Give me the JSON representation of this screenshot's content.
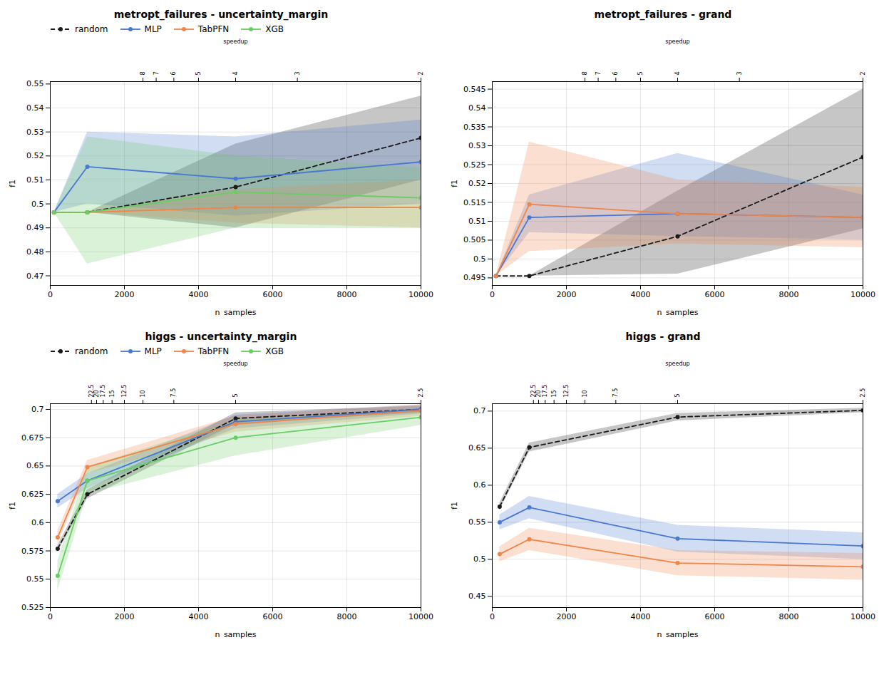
{
  "chart_data": [
    {
      "type": "line",
      "title": "metropt_failures - uncertainty_margin",
      "x_label": "n_samples",
      "y_label": "f1",
      "x2_label": "speedup",
      "x": [
        100,
        1000,
        5000,
        10000
      ],
      "xlim": [
        0,
        10000
      ],
      "xticks": [
        0,
        2000,
        4000,
        6000,
        8000,
        10000
      ],
      "ylim": [
        0.466,
        0.551
      ],
      "yticks": [
        0.47,
        0.48,
        0.49,
        0.5,
        0.51,
        0.52,
        0.53,
        0.54,
        0.55
      ],
      "x2ticks": [
        {
          "value": 2500,
          "label": "8"
        },
        {
          "value": 2857.142857142857,
          "label": "7"
        },
        {
          "value": 3333.3333333333335,
          "label": "6"
        },
        {
          "value": 4000,
          "label": "5"
        },
        {
          "value": 5000,
          "label": "4"
        },
        {
          "value": 6666.666666666667,
          "label": "3"
        },
        {
          "value": 10000,
          "label": "2"
        }
      ],
      "grid": true,
      "legend": "upper left",
      "series": [
        {
          "name": "random",
          "color": "#1a1a1a",
          "line_style": "dashed",
          "marker": "circle",
          "values": [
            0.4965,
            0.4965,
            0.507,
            0.5275
          ],
          "std_low": [
            0.4965,
            0.4965,
            0.49,
            0.51
          ],
          "std_high": [
            0.4965,
            0.4965,
            0.525,
            0.545
          ]
        },
        {
          "name": "MLP",
          "color": "#4878d0",
          "line_style": "solid",
          "marker": "circle",
          "values": [
            0.4965,
            0.5155,
            0.5105,
            0.5175
          ],
          "std_low": [
            0.4965,
            0.5,
            0.495,
            0.5
          ],
          "std_high": [
            0.4965,
            0.53,
            0.528,
            0.535
          ]
        },
        {
          "name": "TabPFN",
          "color": "#ee854a",
          "line_style": "solid",
          "marker": "circle",
          "values": [
            0.4965,
            0.4965,
            0.4985,
            0.4985
          ],
          "std_low": [
            0.4965,
            0.4965,
            0.492,
            0.49
          ],
          "std_high": [
            0.4965,
            0.4965,
            0.506,
            0.51
          ]
        },
        {
          "name": "XGB",
          "color": "#6acc65",
          "line_style": "solid",
          "marker": "circle",
          "values": [
            0.4965,
            0.4965,
            0.505,
            0.5025
          ],
          "std_low": [
            0.4965,
            0.475,
            0.49,
            0.49
          ],
          "std_high": [
            0.4965,
            0.528,
            0.52,
            0.515
          ]
        }
      ]
    },
    {
      "type": "line",
      "title": "metropt_failures - grand",
      "x_label": "n_samples",
      "y_label": "f1",
      "x2_label": "speedup",
      "x": [
        100,
        1000,
        5000,
        10000
      ],
      "xlim": [
        0,
        10000
      ],
      "xticks": [
        0,
        2000,
        4000,
        6000,
        8000,
        10000
      ],
      "ylim": [
        0.493,
        0.547
      ],
      "yticks": [
        0.495,
        0.5,
        0.505,
        0.51,
        0.515,
        0.52,
        0.525,
        0.53,
        0.535,
        0.54,
        0.545
      ],
      "x2ticks": [
        {
          "value": 2500,
          "label": "8"
        },
        {
          "value": 2857.142857142857,
          "label": "7"
        },
        {
          "value": 3333.3333333333335,
          "label": "6"
        },
        {
          "value": 4000,
          "label": "5"
        },
        {
          "value": 5000,
          "label": "4"
        },
        {
          "value": 6666.666666666667,
          "label": "3"
        },
        {
          "value": 10000,
          "label": "2"
        }
      ],
      "grid": true,
      "series": [
        {
          "name": "random",
          "color": "#1a1a1a",
          "line_style": "dashed",
          "marker": "circle",
          "values": [
            0.4955,
            0.4955,
            0.506,
            0.527
          ],
          "std_low": [
            0.4955,
            0.4955,
            0.496,
            0.508
          ],
          "std_high": [
            0.4955,
            0.4955,
            0.518,
            0.545
          ]
        },
        {
          "name": "MLP",
          "color": "#4878d0",
          "line_style": "solid",
          "marker": "circle",
          "values": [
            0.4955,
            0.511,
            0.512,
            0.511
          ],
          "std_low": [
            0.4955,
            0.507,
            0.506,
            0.505
          ],
          "std_high": [
            0.4955,
            0.517,
            0.528,
            0.517
          ]
        },
        {
          "name": "TabPFN",
          "color": "#ee854a",
          "line_style": "solid",
          "marker": "circle",
          "values": [
            0.4955,
            0.5145,
            0.512,
            0.511
          ],
          "std_low": [
            0.4955,
            0.502,
            0.504,
            0.503
          ],
          "std_high": [
            0.4955,
            0.531,
            0.521,
            0.519
          ]
        }
      ]
    },
    {
      "type": "line",
      "title": "higgs - uncertainty_margin",
      "x_label": "n_samples",
      "y_label": "f1",
      "x2_label": "speedup",
      "x": [
        200,
        1000,
        5000,
        10000
      ],
      "xlim": [
        0,
        10000
      ],
      "xticks": [
        0,
        2000,
        4000,
        6000,
        8000,
        10000
      ],
      "ylim": [
        0.525,
        0.705
      ],
      "yticks": [
        0.525,
        0.55,
        0.575,
        0.6,
        0.625,
        0.65,
        0.675,
        0.7
      ],
      "x2ticks": [
        {
          "value": 1111.111111111111,
          "label": "22.5"
        },
        {
          "value": 1250,
          "label": "20"
        },
        {
          "value": 1428.5714285714287,
          "label": "17.5"
        },
        {
          "value": 1666.6666666666667,
          "label": "15"
        },
        {
          "value": 2000,
          "label": "12.5"
        },
        {
          "value": 2500,
          "label": "10"
        },
        {
          "value": 3333.3333333333335,
          "label": "7.5"
        },
        {
          "value": 5000,
          "label": "5"
        },
        {
          "value": 10000,
          "label": "2.5"
        }
      ],
      "grid": true,
      "legend": "upper left",
      "series": [
        {
          "name": "random",
          "color": "#1a1a1a",
          "line_style": "dashed",
          "marker": "circle",
          "values": [
            0.577,
            0.625,
            0.692,
            0.7
          ],
          "std_low": [
            0.574,
            0.621,
            0.687,
            0.697
          ],
          "std_high": [
            0.58,
            0.629,
            0.697,
            0.703
          ]
        },
        {
          "name": "MLP",
          "color": "#4878d0",
          "line_style": "solid",
          "marker": "circle",
          "values": [
            0.619,
            0.637,
            0.689,
            0.7
          ],
          "std_low": [
            0.613,
            0.63,
            0.683,
            0.696
          ],
          "std_high": [
            0.625,
            0.643,
            0.695,
            0.704
          ]
        },
        {
          "name": "TabPFN",
          "color": "#ee854a",
          "line_style": "solid",
          "marker": "circle",
          "values": [
            0.587,
            0.649,
            0.687,
            0.699
          ],
          "std_low": [
            0.581,
            0.643,
            0.68,
            0.694
          ],
          "std_high": [
            0.593,
            0.655,
            0.694,
            0.704
          ]
        },
        {
          "name": "XGB",
          "color": "#6acc65",
          "line_style": "solid",
          "marker": "circle",
          "values": [
            0.553,
            0.637,
            0.675,
            0.693
          ],
          "std_low": [
            0.54,
            0.625,
            0.659,
            0.686
          ],
          "std_high": [
            0.566,
            0.649,
            0.691,
            0.7
          ]
        }
      ]
    },
    {
      "type": "line",
      "title": "higgs - grand",
      "x_label": "n_samples",
      "y_label": "f1",
      "x2_label": "speedup",
      "x": [
        200,
        1000,
        5000,
        10000
      ],
      "xlim": [
        0,
        10000
      ],
      "xticks": [
        0,
        2000,
        4000,
        6000,
        8000,
        10000
      ],
      "ylim": [
        0.435,
        0.71
      ],
      "yticks": [
        0.45,
        0.5,
        0.55,
        0.6,
        0.65,
        0.7
      ],
      "x2ticks": [
        {
          "value": 1111.111111111111,
          "label": "22.5"
        },
        {
          "value": 1250,
          "label": "20"
        },
        {
          "value": 1428.5714285714287,
          "label": "17.5"
        },
        {
          "value": 1666.6666666666667,
          "label": "15"
        },
        {
          "value": 2000,
          "label": "12.5"
        },
        {
          "value": 2500,
          "label": "10"
        },
        {
          "value": 3333.3333333333335,
          "label": "7.5"
        },
        {
          "value": 5000,
          "label": "5"
        },
        {
          "value": 10000,
          "label": "2.5"
        }
      ],
      "grid": true,
      "series": [
        {
          "name": "random",
          "color": "#1a1a1a",
          "line_style": "dashed",
          "marker": "circle",
          "values": [
            0.571,
            0.651,
            0.692,
            0.701
          ],
          "std_low": [
            0.566,
            0.645,
            0.687,
            0.698
          ],
          "std_high": [
            0.576,
            0.657,
            0.697,
            0.704
          ]
        },
        {
          "name": "MLP",
          "color": "#4878d0",
          "line_style": "solid",
          "marker": "circle",
          "values": [
            0.55,
            0.57,
            0.528,
            0.518
          ],
          "std_low": [
            0.54,
            0.555,
            0.51,
            0.5
          ],
          "std_high": [
            0.56,
            0.585,
            0.546,
            0.536
          ]
        },
        {
          "name": "TabPFN",
          "color": "#ee854a",
          "line_style": "solid",
          "marker": "circle",
          "values": [
            0.507,
            0.527,
            0.495,
            0.49
          ],
          "std_low": [
            0.497,
            0.512,
            0.478,
            0.472
          ],
          "std_high": [
            0.517,
            0.542,
            0.512,
            0.508
          ]
        }
      ]
    }
  ]
}
